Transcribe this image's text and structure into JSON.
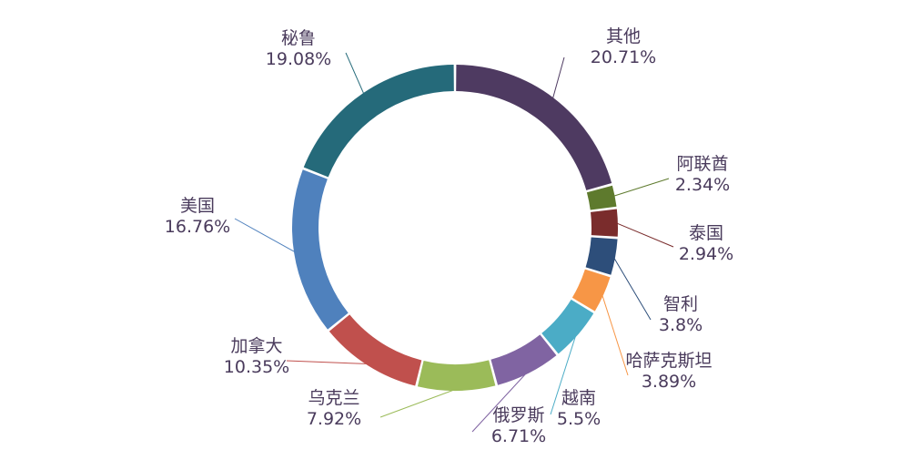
{
  "chart_data": {
    "type": "pie",
    "variant": "donut",
    "title": "",
    "slices": [
      {
        "label": "其他",
        "percent_text": "20.71%",
        "value": 20.71,
        "color": "#4e3a61"
      },
      {
        "label": "阿联酋",
        "percent_text": "2.34%",
        "value": 2.34,
        "color": "#5e7a2d"
      },
      {
        "label": "泰国",
        "percent_text": "2.94%",
        "value": 2.94,
        "color": "#7a2c2c"
      },
      {
        "label": "智利",
        "percent_text": "3.8%",
        "value": 3.8,
        "color": "#2d4e7a"
      },
      {
        "label": "哈萨克斯坦",
        "percent_text": "3.89%",
        "value": 3.89,
        "color": "#f79646"
      },
      {
        "label": "越南",
        "percent_text": "5.5%",
        "value": 5.5,
        "color": "#4bacc6"
      },
      {
        "label": "俄罗斯",
        "percent_text": "6.71%",
        "value": 6.71,
        "color": "#8064a2"
      },
      {
        "label": "乌克兰",
        "percent_text": "7.92%",
        "value": 7.92,
        "color": "#9bbb59"
      },
      {
        "label": "加拿大",
        "percent_text": "10.35%",
        "value": 10.35,
        "color": "#c0504d"
      },
      {
        "label": "美国",
        "percent_text": "16.76%",
        "value": 16.76,
        "color": "#4f81bd"
      },
      {
        "label": "秘鲁",
        "percent_text": "19.08%",
        "value": 19.08,
        "color": "#256a7a"
      }
    ]
  }
}
